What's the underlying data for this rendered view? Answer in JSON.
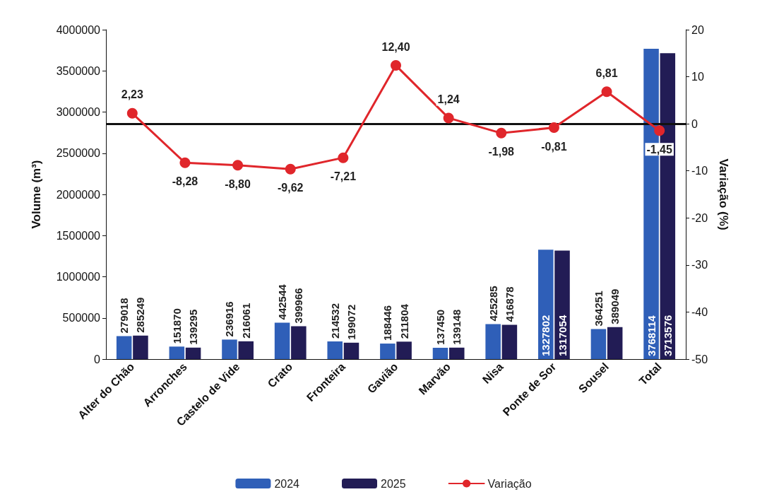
{
  "chart_data": {
    "type": "bar",
    "ylabel": "Volume (m³)",
    "y2label": "Variação (%)",
    "categories": [
      "Alter do Chão",
      "Arronches",
      "Castelo de Vide",
      "Crato",
      "Fronteira",
      "Gavião",
      "Marvão",
      "Nisa",
      "Ponte de Sor",
      "Sousel",
      "Total"
    ],
    "series": [
      {
        "name": "2024",
        "color": "#2f5fb8",
        "values": [
          279018,
          151870,
          236916,
          442544,
          214532,
          188446,
          137450,
          425285,
          1327802,
          364251,
          3768114
        ],
        "value_labels": [
          "279018",
          "151870",
          "236916",
          "442544",
          "214532",
          "188446",
          "137450",
          "425285",
          "1327802",
          "364251",
          "3768114"
        ]
      },
      {
        "name": "2025",
        "color": "#221c55",
        "values": [
          285249,
          139295,
          216061,
          399966,
          199072,
          211804,
          139148,
          416878,
          1317054,
          389049,
          3713576
        ],
        "value_labels": [
          "285249",
          "139295",
          "216061",
          "399966",
          "199072",
          "211804",
          "139148",
          "416878",
          "1317054",
          "389049",
          "3713576"
        ]
      },
      {
        "name": "Variação",
        "type": "line",
        "axis": "y2",
        "color": "#e0262b",
        "values": [
          2.23,
          -8.28,
          -8.8,
          -9.62,
          -7.21,
          12.4,
          1.24,
          -1.98,
          -0.81,
          6.81,
          -1.45
        ],
        "value_labels": [
          "2,23",
          "-8,28",
          "-8,80",
          "-9,62",
          "-7,21",
          "12,40",
          "1,24",
          "-1,98",
          "-0,81",
          "6,81",
          "-1,45"
        ]
      }
    ],
    "ylim": [
      0,
      4000000
    ],
    "yticks": [
      0,
      500000,
      1000000,
      1500000,
      2000000,
      2500000,
      3000000,
      3500000,
      4000000
    ],
    "y2lim": [
      -50,
      20
    ],
    "y2ticks": [
      -50,
      -40,
      -30,
      -20,
      -10,
      0,
      10,
      20
    ],
    "ref_lines": [
      {
        "axis": "y2",
        "value": 0,
        "color": "#111111"
      }
    ],
    "marker": "circle",
    "grid": false,
    "legend": "bottom"
  }
}
